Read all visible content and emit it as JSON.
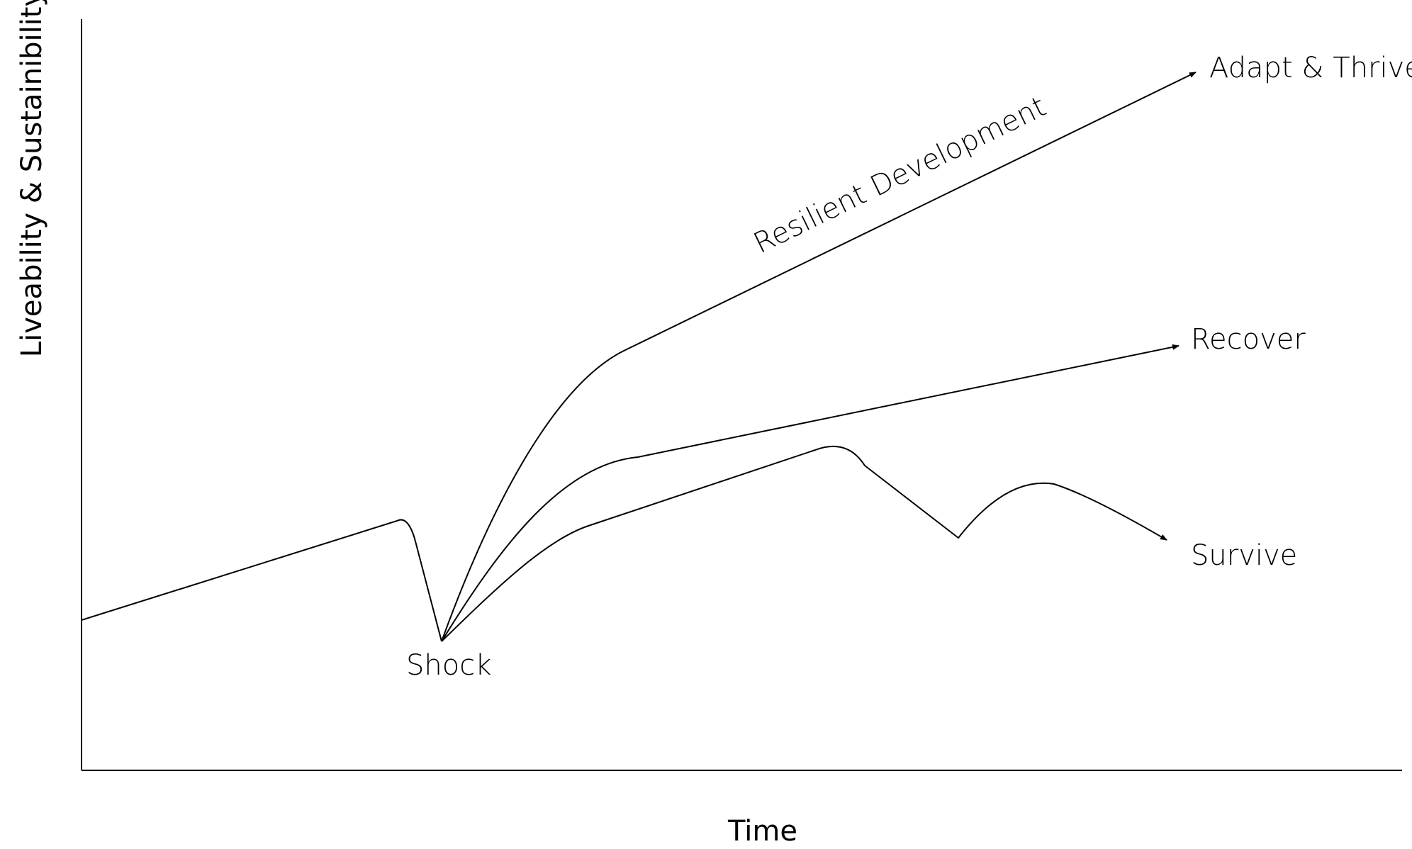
{
  "axes": {
    "x_title": "Time",
    "y_title": "Liveability & Sustainibility"
  },
  "labels": {
    "shock": "Shock",
    "adapt_thrive": "Adapt & Thrive",
    "recover": "Recover",
    "survive": "Survive",
    "resilient_development": "Resilient Development"
  },
  "colors": {
    "line": "#000000",
    "background": "#ffffff"
  }
}
